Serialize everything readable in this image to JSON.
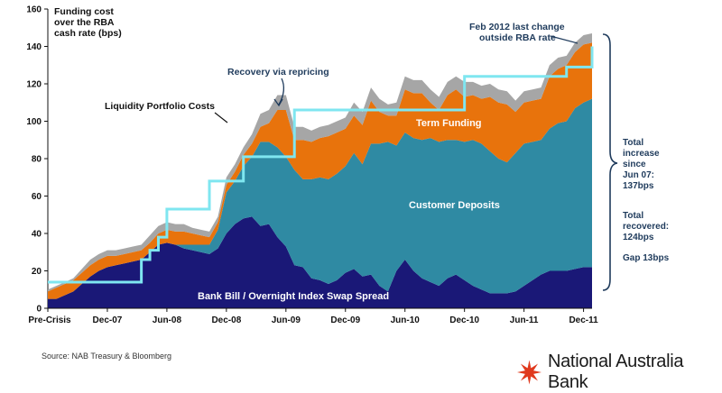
{
  "chart_data": {
    "type": "area",
    "ylabel": "Funding cost over the RBA cash rate (bps)",
    "ylim": [
      0,
      160
    ],
    "yticks": [
      0,
      20,
      40,
      60,
      80,
      100,
      120,
      140,
      160
    ],
    "x_tick_labels": [
      "Pre-Crisis",
      "Dec-07",
      "Jun-08",
      "Dec-08",
      "Jun-09",
      "Dec-09",
      "Jun-10",
      "Dec-10",
      "Jun-11",
      "Dec-11"
    ],
    "colors": {
      "bank_bill": "#1a1877",
      "customer_deposits": "#2f8aa3",
      "term_funding": "#e8730c",
      "liquidity": "#a6a6a6",
      "repricing_line": "#7fe6f0",
      "brace": "#1f3b5c",
      "side_text": "#1f3b5c"
    },
    "series": [
      {
        "name": "Bank Bill / Overnight Index Swap Spread",
        "values": [
          5,
          5,
          7,
          9,
          13,
          17,
          20,
          22,
          23,
          24,
          25,
          26,
          30,
          34,
          35,
          34,
          32,
          31,
          30,
          29,
          32,
          40,
          45,
          48,
          49,
          44,
          45,
          38,
          33,
          23,
          22,
          16,
          15,
          13,
          15,
          19,
          21,
          17,
          18,
          12,
          9,
          20,
          26,
          20,
          16,
          14,
          12,
          16,
          18,
          15,
          12,
          10,
          8,
          8,
          8,
          9,
          12,
          15,
          18,
          20,
          20,
          20,
          21,
          22,
          22
        ]
      },
      {
        "name": "Customer Deposits",
        "values": [
          0,
          0,
          0,
          0,
          0,
          0,
          0,
          0,
          0,
          0,
          0,
          0,
          0,
          0,
          0,
          0,
          2,
          3,
          4,
          5,
          10,
          22,
          23,
          28,
          32,
          45,
          44,
          48,
          48,
          51,
          47,
          53,
          55,
          56,
          57,
          57,
          62,
          60,
          70,
          76,
          80,
          67,
          68,
          71,
          74,
          77,
          77,
          74,
          72,
          74,
          78,
          78,
          76,
          72,
          70,
          74,
          76,
          74,
          72,
          76,
          79,
          80,
          86,
          88,
          90
        ]
      },
      {
        "name": "Term Funding",
        "values": [
          4,
          6,
          6,
          6,
          6,
          6,
          6,
          6,
          5,
          5,
          5,
          5,
          5,
          6,
          7,
          7,
          7,
          6,
          5,
          4,
          4,
          4,
          5,
          6,
          7,
          8,
          10,
          20,
          25,
          16,
          21,
          20,
          21,
          23,
          22,
          20,
          20,
          21,
          23,
          17,
          14,
          16,
          23,
          24,
          25,
          19,
          17,
          24,
          27,
          24,
          24,
          24,
          29,
          30,
          31,
          22,
          22,
          22,
          22,
          28,
          29,
          30,
          30,
          31,
          30
        ]
      },
      {
        "name": "Liquidity Portfolio Costs",
        "values": [
          1,
          1,
          1,
          1,
          2,
          3,
          3,
          3,
          3,
          3,
          3,
          3,
          4,
          4,
          4,
          4,
          4,
          3,
          3,
          3,
          3,
          4,
          4,
          4,
          5,
          7,
          7,
          8,
          8,
          7,
          7,
          6,
          6,
          6,
          6,
          6,
          7,
          7,
          7,
          7,
          6,
          7,
          7,
          7,
          7,
          7,
          7,
          7,
          7,
          8,
          7,
          7,
          7,
          7,
          7,
          6,
          6,
          6,
          6,
          6,
          6,
          5,
          5,
          5,
          5
        ]
      }
    ],
    "repricing_line": {
      "name": "Recovery via repricing",
      "values": [
        14,
        14,
        14,
        14,
        14,
        14,
        14,
        14,
        14,
        14,
        14,
        26,
        31,
        38,
        53,
        53,
        53,
        53,
        53,
        68,
        68,
        68,
        68,
        81,
        81,
        81,
        81,
        81,
        81,
        106,
        106,
        106,
        106,
        106,
        106,
        106,
        106,
        106,
        106,
        106,
        106,
        106,
        106,
        106,
        106,
        106,
        106,
        106,
        106,
        124,
        124,
        124,
        124,
        124,
        124,
        124,
        124,
        124,
        124,
        124,
        124,
        129,
        129,
        129,
        140
      ]
    },
    "annotations": {
      "ylabel_lines": [
        "Funding cost",
        "over the RBA",
        "cash rate (bps)"
      ],
      "recovery": "Recovery via repricing",
      "liquidity": "Liquidity Portfolio Costs",
      "term_funding": "Term Funding",
      "customer_deposits": "Customer Deposits",
      "bank_bill": "Bank Bill / Overnight Index Swap Spread",
      "feb_lines": [
        "Feb 2012 last change",
        "outside RBA rate"
      ]
    },
    "side_notes": {
      "total_increase": [
        "Total",
        "increase",
        "since",
        "Jun 07:",
        "137bps"
      ],
      "total_recovered": [
        "Total",
        "recovered:",
        "124bps"
      ],
      "gap": "Gap 13bps"
    }
  },
  "footer": {
    "source": "Source: NAB Treasury & Bloomberg",
    "brand_name": "National Australia Bank",
    "brand_icon": "nab-star-icon",
    "brand_color": "#e03a1e"
  }
}
